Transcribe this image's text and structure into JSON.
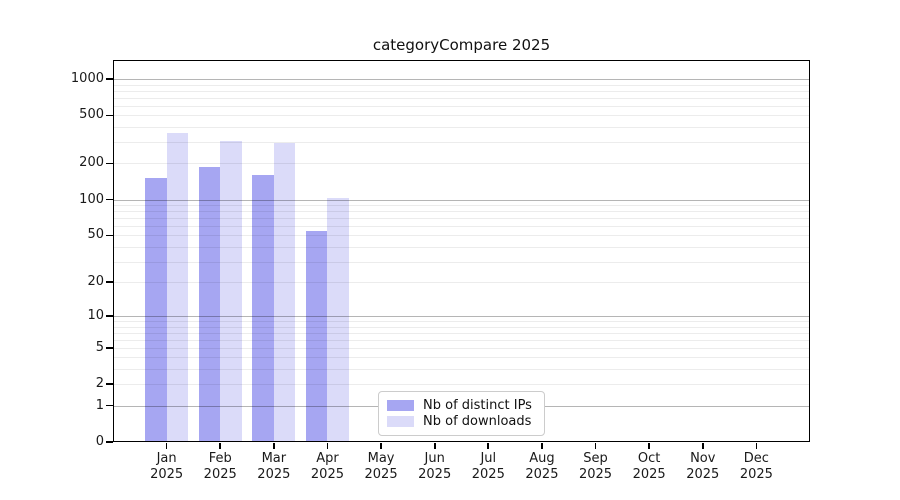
{
  "figure": {
    "title": "categoryCompare 2025"
  },
  "chart_data": {
    "type": "bar",
    "title": "categoryCompare 2025",
    "categories": [
      "Jan",
      "Feb",
      "Mar",
      "Apr",
      "May",
      "Jun",
      "Jul",
      "Aug",
      "Sep",
      "Oct",
      "Nov",
      "Dec"
    ],
    "category_year": "2025",
    "series": [
      {
        "name": "Nb of distinct IPs",
        "color": "#a6a6f2",
        "values": [
          150,
          185,
          160,
          55,
          0,
          0,
          0,
          0,
          0,
          0,
          0,
          0
        ]
      },
      {
        "name": "Nb of downloads",
        "color": "#dbdbf9",
        "values": [
          355,
          305,
          293,
          103,
          0,
          0,
          0,
          0,
          0,
          0,
          0,
          0
        ]
      }
    ],
    "yscale": "log1p",
    "yticks": [
      0,
      1,
      2,
      5,
      10,
      20,
      50,
      100,
      200,
      500,
      1000
    ],
    "ylim": [
      0,
      1437
    ],
    "grid": true,
    "grid_minor_values": [
      2,
      3,
      4,
      5,
      6,
      7,
      8,
      9,
      20,
      30,
      40,
      50,
      60,
      70,
      80,
      90,
      200,
      300,
      400,
      500,
      600,
      700,
      800,
      900
    ],
    "grid_major_values": [
      1,
      10,
      100,
      1000
    ],
    "legend_position": "inside-bottom-center",
    "axis_color": "#000000",
    "background_color": "#ffffff"
  }
}
